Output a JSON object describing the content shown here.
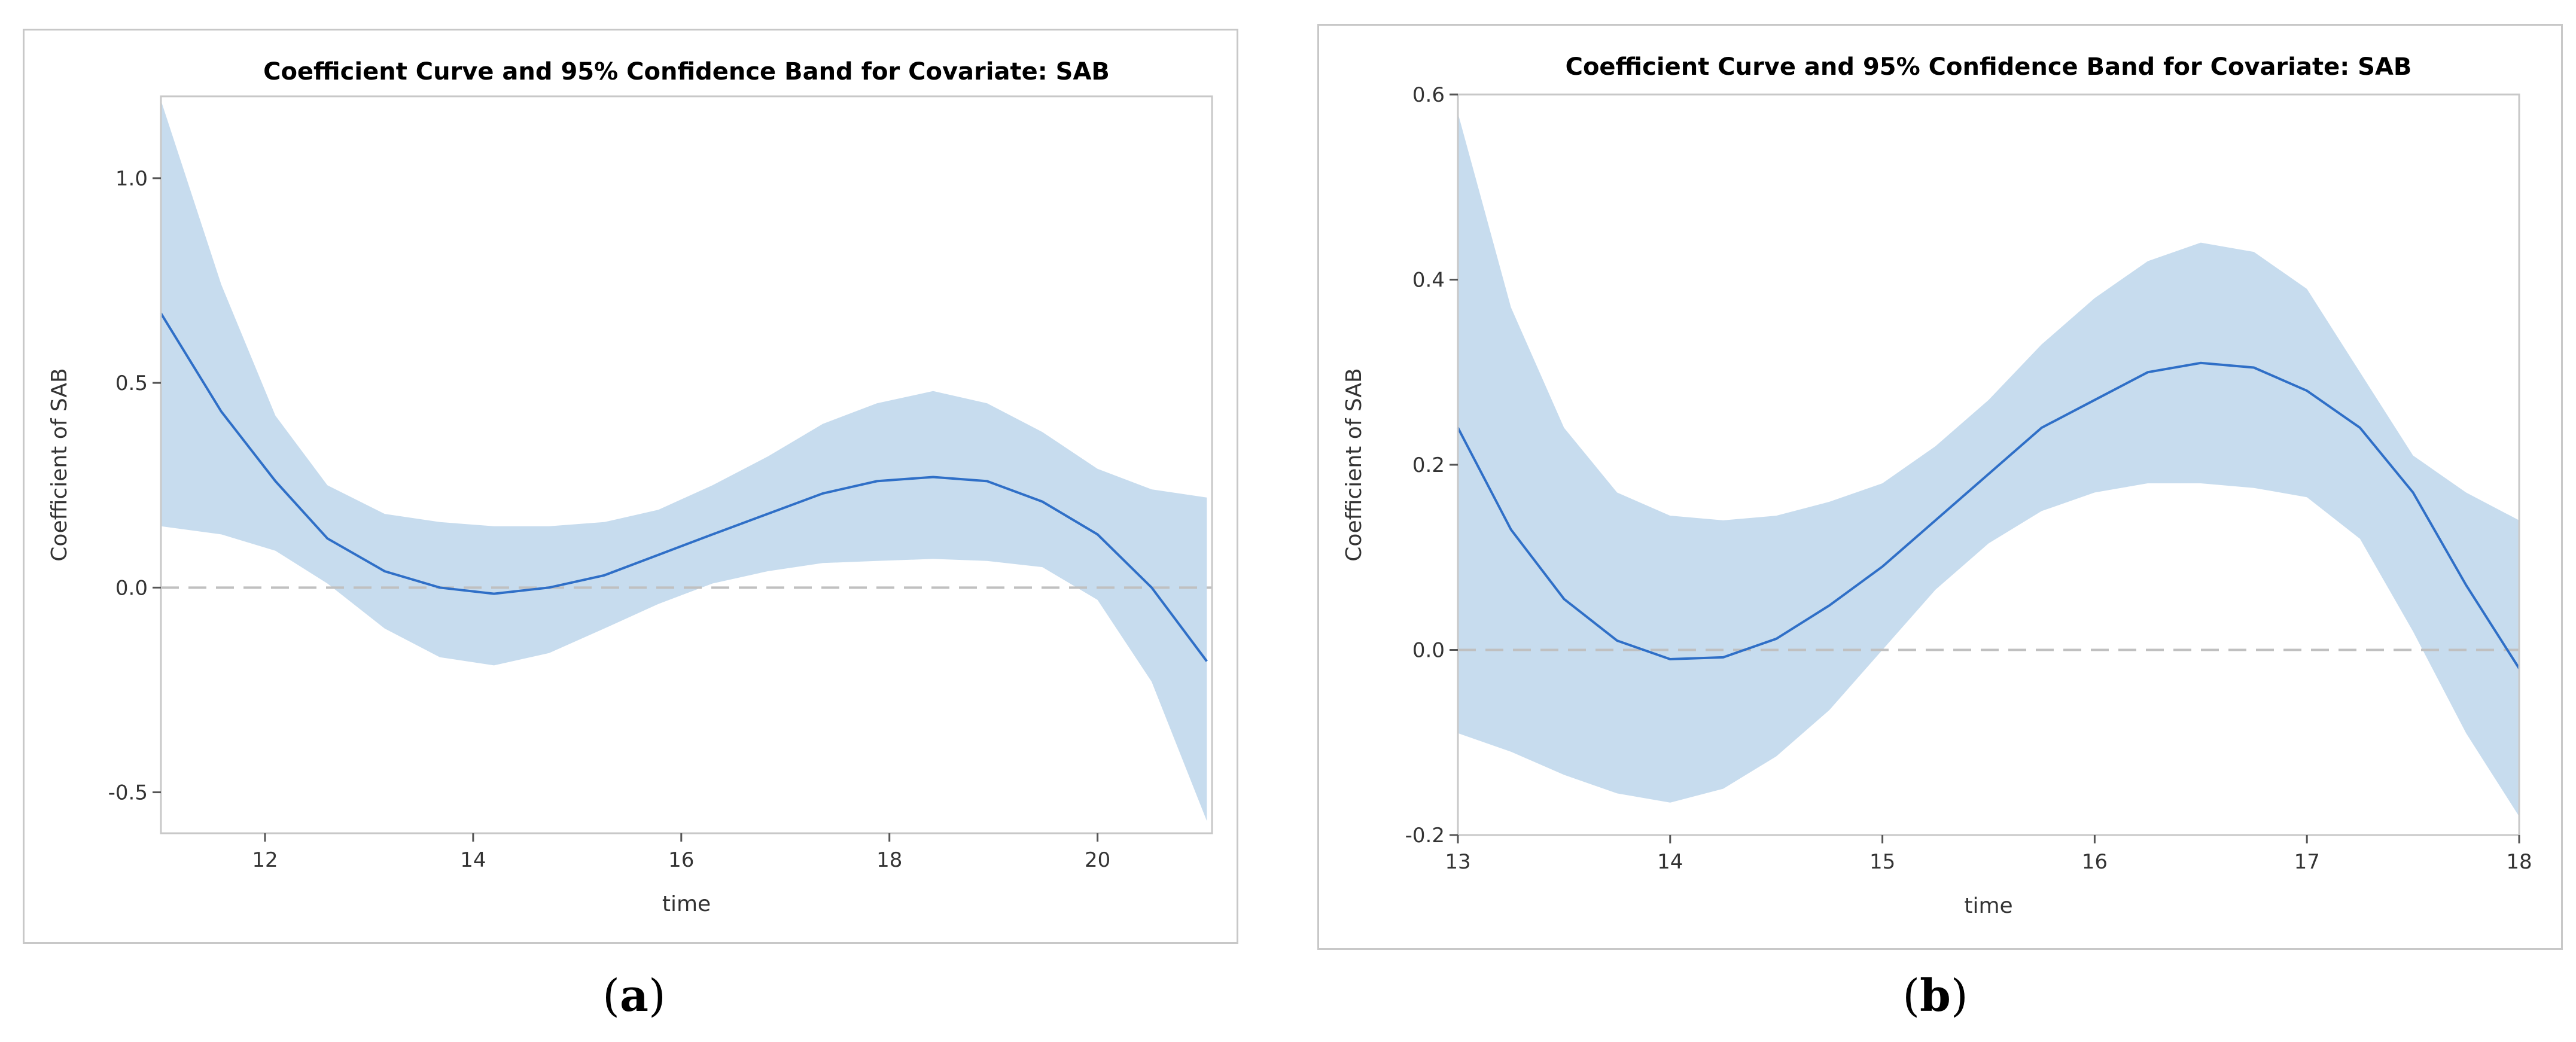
{
  "captions": {
    "a_letter": "a",
    "b_letter": "b"
  },
  "colors": {
    "band": "#c7dcee",
    "line": "#2f6fc7",
    "zero": "#c0c0c0",
    "frame": "#c8c8c8",
    "text": "#333333"
  },
  "chart_data": [
    {
      "type": "line",
      "title": "Coefficient Curve and 95% Confidence Band for Covariate: SAB",
      "xlabel": "time",
      "ylabel": "Coefficient of SAB",
      "xlim": [
        11,
        21.1
      ],
      "ylim": [
        -0.6,
        1.2
      ],
      "xticks": [
        12,
        14,
        16,
        18,
        20
      ],
      "yticks": [
        1.0,
        0.5,
        0.0,
        -0.5
      ],
      "ytick_labels": [
        "1.0",
        "0.5",
        "0.0",
        "-0.5"
      ],
      "xtick_labels": [
        "12",
        "14",
        "16",
        "18",
        "20"
      ],
      "reference_line": 0.0,
      "series": [
        {
          "name": "Coefficient",
          "x": [
            11.0,
            11.58,
            12.1,
            12.6,
            13.15,
            13.68,
            14.2,
            14.73,
            15.26,
            15.78,
            16.3,
            16.83,
            17.36,
            17.88,
            18.42,
            18.94,
            19.47,
            20.0,
            20.52,
            21.05
          ],
          "values": [
            0.67,
            0.43,
            0.26,
            0.12,
            0.04,
            0.0,
            -0.015,
            0.0,
            0.03,
            0.08,
            0.13,
            0.18,
            0.23,
            0.26,
            0.27,
            0.26,
            0.21,
            0.13,
            0.0,
            -0.18
          ]
        },
        {
          "name": "Upper 95%",
          "x": [
            11.0,
            11.58,
            12.1,
            12.6,
            13.15,
            13.68,
            14.2,
            14.73,
            15.26,
            15.78,
            16.3,
            16.83,
            17.36,
            17.88,
            18.42,
            18.94,
            19.47,
            20.0,
            20.52,
            21.05
          ],
          "values": [
            1.19,
            0.74,
            0.42,
            0.25,
            0.18,
            0.16,
            0.15,
            0.15,
            0.16,
            0.19,
            0.25,
            0.32,
            0.4,
            0.45,
            0.48,
            0.45,
            0.38,
            0.29,
            0.24,
            0.22
          ]
        },
        {
          "name": "Lower 95%",
          "x": [
            11.0,
            11.58,
            12.1,
            12.6,
            13.15,
            13.68,
            14.2,
            14.73,
            15.26,
            15.78,
            16.3,
            16.83,
            17.36,
            17.88,
            18.42,
            18.94,
            19.47,
            20.0,
            20.52,
            21.05
          ],
          "values": [
            0.15,
            0.13,
            0.09,
            0.01,
            -0.1,
            -0.17,
            -0.19,
            -0.16,
            -0.1,
            -0.04,
            0.01,
            0.04,
            0.06,
            0.065,
            0.07,
            0.065,
            0.05,
            -0.03,
            -0.23,
            -0.57
          ]
        }
      ]
    },
    {
      "type": "line",
      "title": "Coefficient Curve and 95% Confidence Band for Covariate: SAB",
      "xlabel": "time",
      "ylabel": "Coefficient of SAB",
      "xlim": [
        13,
        18
      ],
      "ylim": [
        -0.2,
        0.6
      ],
      "xticks": [
        13,
        14,
        15,
        16,
        17,
        18
      ],
      "yticks": [
        0.6,
        0.4,
        0.2,
        0.0,
        -0.2
      ],
      "ytick_labels": [
        "0.6",
        "0.4",
        "0.2",
        "0.0",
        "-0.2"
      ],
      "xtick_labels": [
        "13",
        "14",
        "15",
        "16",
        "17",
        "18"
      ],
      "reference_line": 0.0,
      "series": [
        {
          "name": "Coefficient",
          "x": [
            13.0,
            13.25,
            13.5,
            13.75,
            14.0,
            14.25,
            14.5,
            14.75,
            15.0,
            15.25,
            15.5,
            15.75,
            16.0,
            16.25,
            16.5,
            16.75,
            17.0,
            17.25,
            17.5,
            17.75,
            18.0
          ],
          "values": [
            0.24,
            0.13,
            0.055,
            0.01,
            -0.01,
            -0.008,
            0.012,
            0.048,
            0.09,
            0.14,
            0.19,
            0.24,
            0.27,
            0.3,
            0.31,
            0.305,
            0.28,
            0.24,
            0.17,
            0.07,
            -0.02
          ]
        },
        {
          "name": "Upper 95%",
          "x": [
            13.0,
            13.25,
            13.5,
            13.75,
            14.0,
            14.25,
            14.5,
            14.75,
            15.0,
            15.25,
            15.5,
            15.75,
            16.0,
            16.25,
            16.5,
            16.75,
            17.0,
            17.25,
            17.5,
            17.75,
            18.0
          ],
          "values": [
            0.58,
            0.37,
            0.24,
            0.17,
            0.145,
            0.14,
            0.145,
            0.16,
            0.18,
            0.22,
            0.27,
            0.33,
            0.38,
            0.42,
            0.44,
            0.43,
            0.39,
            0.3,
            0.21,
            0.17,
            0.14
          ]
        },
        {
          "name": "Lower 95%",
          "x": [
            13.0,
            13.25,
            13.5,
            13.75,
            14.0,
            14.25,
            14.5,
            14.75,
            15.0,
            15.25,
            15.5,
            15.75,
            16.0,
            16.25,
            16.5,
            16.75,
            17.0,
            17.25,
            17.5,
            17.75,
            18.0
          ],
          "values": [
            -0.09,
            -0.11,
            -0.135,
            -0.155,
            -0.165,
            -0.15,
            -0.115,
            -0.065,
            0.0,
            0.065,
            0.115,
            0.15,
            0.17,
            0.18,
            0.18,
            0.175,
            0.165,
            0.12,
            0.02,
            -0.09,
            -0.18
          ]
        }
      ]
    }
  ]
}
